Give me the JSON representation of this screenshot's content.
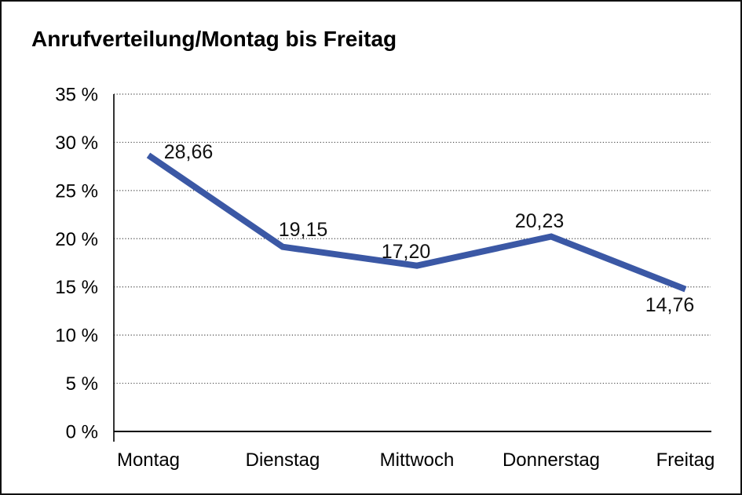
{
  "title": "Anrufverteilung/Montag bis Freitag",
  "chart_data": {
    "type": "line",
    "title": "Anrufverteilung/Montag bis Freitag",
    "categories": [
      "Montag",
      "Dienstag",
      "Mittwoch",
      "Donnerstag",
      "Freitag"
    ],
    "values": [
      28.66,
      19.15,
      17.2,
      20.23,
      14.76
    ],
    "point_labels": [
      "28,66",
      "19,15",
      "17,20",
      "20,23",
      "14,76"
    ],
    "xlabel": "",
    "ylabel": "",
    "ylim": [
      0,
      35
    ],
    "ytick_values": [
      0,
      5,
      10,
      15,
      20,
      25,
      30,
      35
    ],
    "ytick_labels": [
      "0 %",
      "5 %",
      "10 %",
      "15 %",
      "20 %",
      "25 %",
      "30 %",
      "35 %"
    ],
    "grid": "horizontal-dotted",
    "legend_position": "none",
    "series_name": "Anrufverteilung",
    "decimal_style": "comma",
    "line_color": "#3B58A5",
    "grid_color": "#4a4a4a",
    "axis_color": "#000000",
    "text_color": "#000000",
    "background_color": "#ffffff",
    "border_color": "#111111"
  }
}
